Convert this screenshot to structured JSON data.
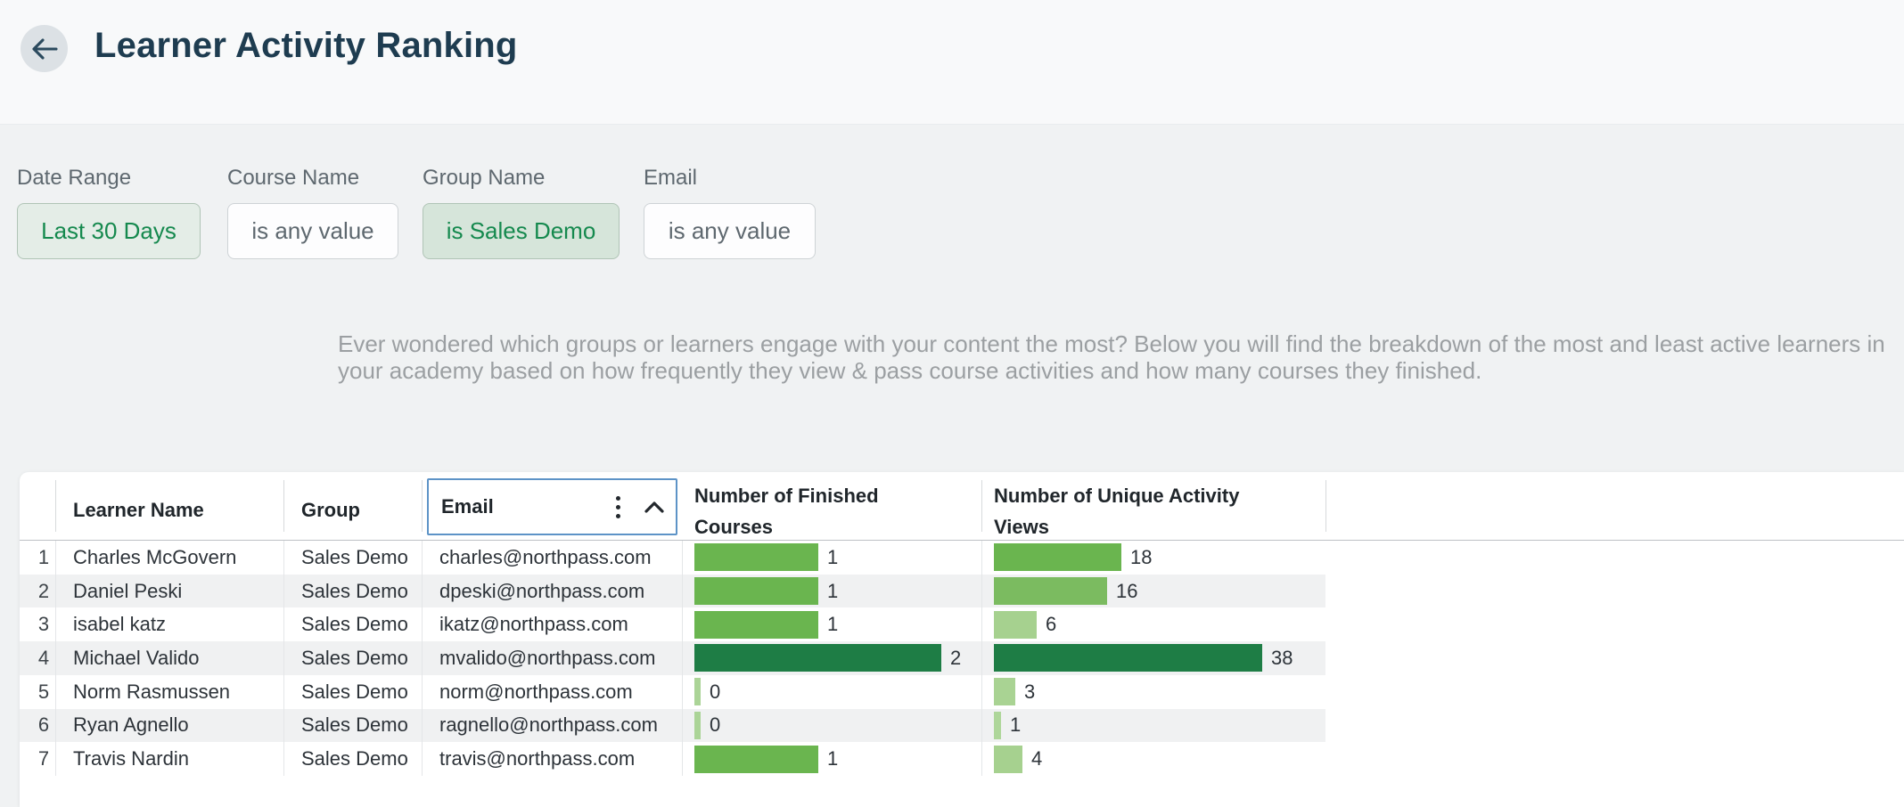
{
  "page": {
    "title": "Learner Activity Ranking"
  },
  "filters": [
    {
      "label": "Date Range",
      "value": "Last 30 Days",
      "active": true
    },
    {
      "label": "Course Name",
      "value": "is any value",
      "active": false
    },
    {
      "label": "Group Name",
      "value": "is Sales Demo",
      "active": true
    },
    {
      "label": "Email",
      "value": "is any value",
      "active": false
    }
  ],
  "description": "Ever wondered which groups or learners engage with your content the most? Below you will find the breakdown of the most and least active learners in your academy based on how frequently they view & pass course activities and how many courses they finished.",
  "table": {
    "headers": {
      "learner": "Learner Name",
      "group": "Group",
      "email": "Email",
      "finished": "Number of Finished\nCourses",
      "views": "Number of Unique Activity\nViews"
    },
    "sort": {
      "column": "Email",
      "direction": "ascending"
    },
    "rows": [
      {
        "rank": 1,
        "name": "Charles McGovern",
        "group": "Sales Demo",
        "email": "charles@northpass.com",
        "finished": 1,
        "views": 18,
        "finished_color": "#6ab54f",
        "views_color": "#6ab54f"
      },
      {
        "rank": 2,
        "name": "Daniel Peski",
        "group": "Sales Demo",
        "email": "dpeski@northpass.com",
        "finished": 1,
        "views": 16,
        "finished_color": "#6ab54f",
        "views_color": "#7bbb60"
      },
      {
        "rank": 3,
        "name": "isabel katz",
        "group": "Sales Demo",
        "email": "ikatz@northpass.com",
        "finished": 1,
        "views": 6,
        "finished_color": "#6ab54f",
        "views_color": "#a6d18f"
      },
      {
        "rank": 4,
        "name": "Michael Valido",
        "group": "Sales Demo",
        "email": "mvalido@northpass.com",
        "finished": 2,
        "views": 38,
        "finished_color": "#1e7d45",
        "views_color": "#1e7d45"
      },
      {
        "rank": 5,
        "name": "Norm Rasmussen",
        "group": "Sales Demo",
        "email": "norm@northpass.com",
        "finished": 0,
        "views": 3,
        "finished_color": "#abd497",
        "views_color": "#a9d393"
      },
      {
        "rank": 6,
        "name": "Ryan Agnello",
        "group": "Sales Demo",
        "email": "ragnello@northpass.com",
        "finished": 0,
        "views": 1,
        "finished_color": "#abd497",
        "views_color": "#aed69a"
      },
      {
        "rank": 7,
        "name": "Travis Nardin",
        "group": "Sales Demo",
        "email": "travis@northpass.com",
        "finished": 1,
        "views": 4,
        "finished_color": "#6ab54f",
        "views_color": "#a6d18f"
      }
    ]
  },
  "colors": {
    "accent_green": "#15894e",
    "bar_dark": "#1e7d45",
    "bar_medium": "#6ab54f",
    "bar_light": "#a6d18f",
    "selection_blue": "#5d93c7",
    "title": "#1e3c50"
  }
}
